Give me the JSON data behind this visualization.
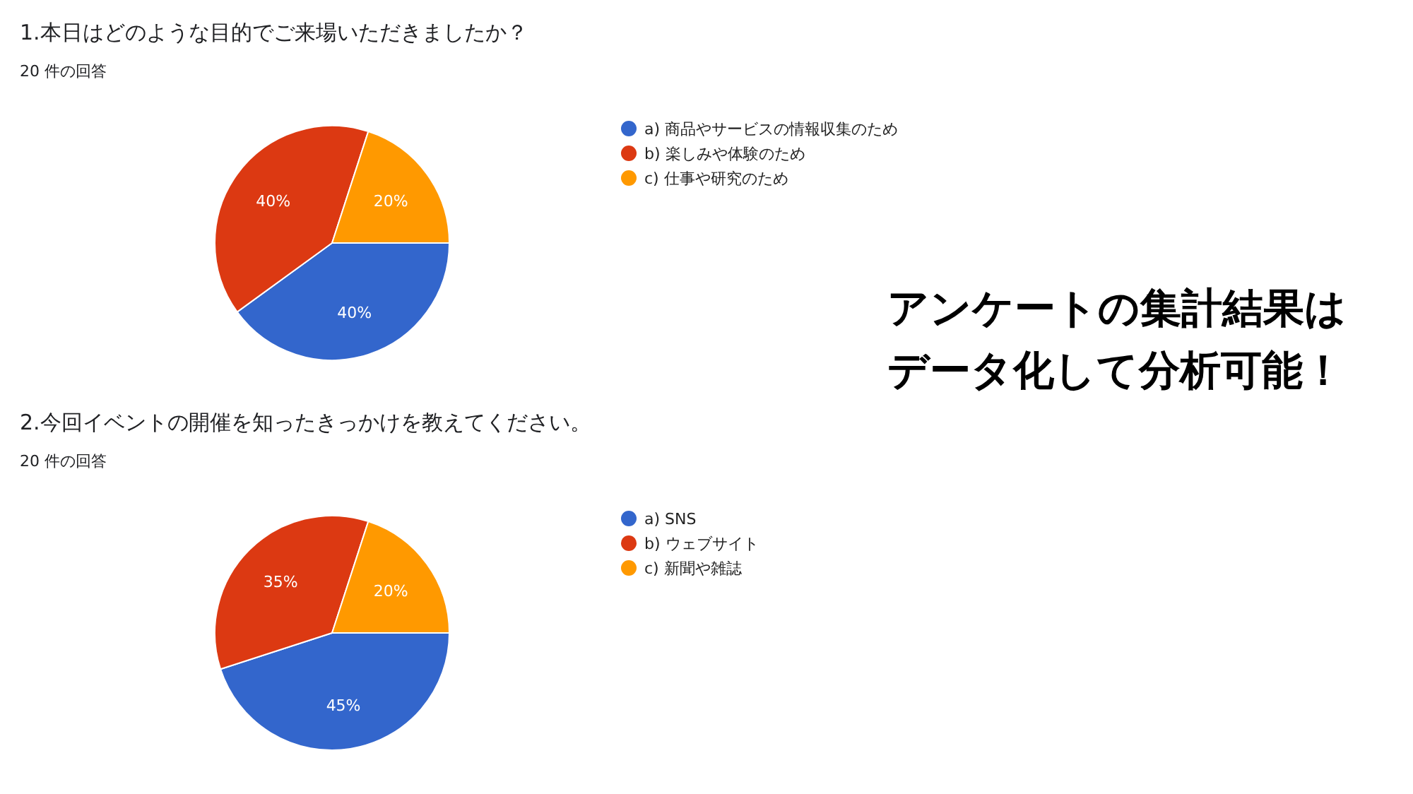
{
  "chart_data": [
    {
      "type": "pie",
      "title": "1.本日はどのような目的でご来場いただきましたか？",
      "subtitle": "20 件の回答",
      "categories": [
        "a) 商品やサービスの情報収集のため",
        "b) 楽しみや体験のため",
        "c) 仕事や研究のため"
      ],
      "values": [
        40,
        40,
        20
      ],
      "value_labels": [
        "40%",
        "40%",
        "20%"
      ],
      "colors": [
        "#3366cc",
        "#dc3912",
        "#ff9900"
      ],
      "legend": "right"
    },
    {
      "type": "pie",
      "title": "2.今回イベントの開催を知ったきっかけを教えてください。",
      "subtitle": "20 件の回答",
      "categories": [
        "a) SNS",
        "b) ウェブサイト",
        "c) 新聞や雑誌"
      ],
      "values": [
        45,
        35,
        20
      ],
      "value_labels": [
        "45%",
        "35%",
        "20%"
      ],
      "colors": [
        "#3366cc",
        "#dc3912",
        "#ff9900"
      ],
      "legend": "right"
    },
    {
      "type": "other",
      "annotations": [
        "アンケートの集計結果は",
        "データ化して分析可能！"
      ]
    }
  ]
}
